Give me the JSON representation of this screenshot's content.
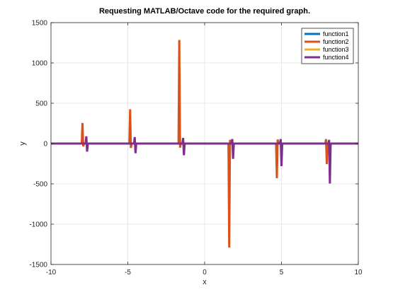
{
  "chart_data": {
    "type": "line",
    "title": "Requesting MATLAB/Octave code for the required graph.",
    "xlabel": "x",
    "ylabel": "y",
    "xlim": [
      -10,
      10
    ],
    "ylim": [
      -1500,
      1500
    ],
    "xticks": [
      "-10",
      "-5",
      "0",
      "5",
      "10"
    ],
    "yticks": [
      "-1500",
      "-1000",
      "-500",
      "0",
      "500",
      "1000",
      "1500"
    ],
    "grid": true,
    "legend_position": "top-right",
    "series": [
      {
        "name": "function1",
        "color": "#0072BD",
        "x": [
          -10,
          10
        ],
        "y": [
          0,
          0
        ]
      },
      {
        "name": "function2",
        "color": "#D95319",
        "x": [
          -10,
          -8.0,
          -7.95,
          -7.9,
          -7.85,
          -4.9,
          -4.85,
          -4.8,
          -4.75,
          -1.7,
          -1.65,
          -1.6,
          -1.55,
          1.55,
          1.6,
          1.65,
          1.7,
          4.65,
          4.7,
          4.75,
          4.8,
          7.85,
          7.9,
          7.95,
          8.0,
          10
        ],
        "y": [
          0,
          0,
          255,
          -35,
          0,
          0,
          425,
          -55,
          0,
          0,
          1285,
          -50,
          0,
          0,
          -1290,
          45,
          0,
          0,
          -430,
          50,
          0,
          0,
          55,
          -255,
          0,
          0
        ]
      },
      {
        "name": "function3",
        "color": "#EDB120",
        "x": [
          -10,
          10
        ],
        "y": [
          0,
          0
        ]
      },
      {
        "name": "function4",
        "color": "#7E2F8E",
        "x": [
          -10,
          -7.75,
          -7.7,
          -7.65,
          -7.6,
          -4.6,
          -4.55,
          -4.5,
          -4.45,
          -1.45,
          -1.4,
          -1.35,
          -1.3,
          1.75,
          1.8,
          1.85,
          1.9,
          4.9,
          4.95,
          5.0,
          5.05,
          8.05,
          8.1,
          8.15,
          8.2,
          10
        ],
        "y": [
          0,
          0,
          90,
          -100,
          0,
          0,
          80,
          -120,
          0,
          0,
          70,
          -145,
          0,
          0,
          55,
          -190,
          0,
          0,
          55,
          -280,
          0,
          0,
          45,
          -495,
          0,
          0
        ]
      }
    ]
  }
}
